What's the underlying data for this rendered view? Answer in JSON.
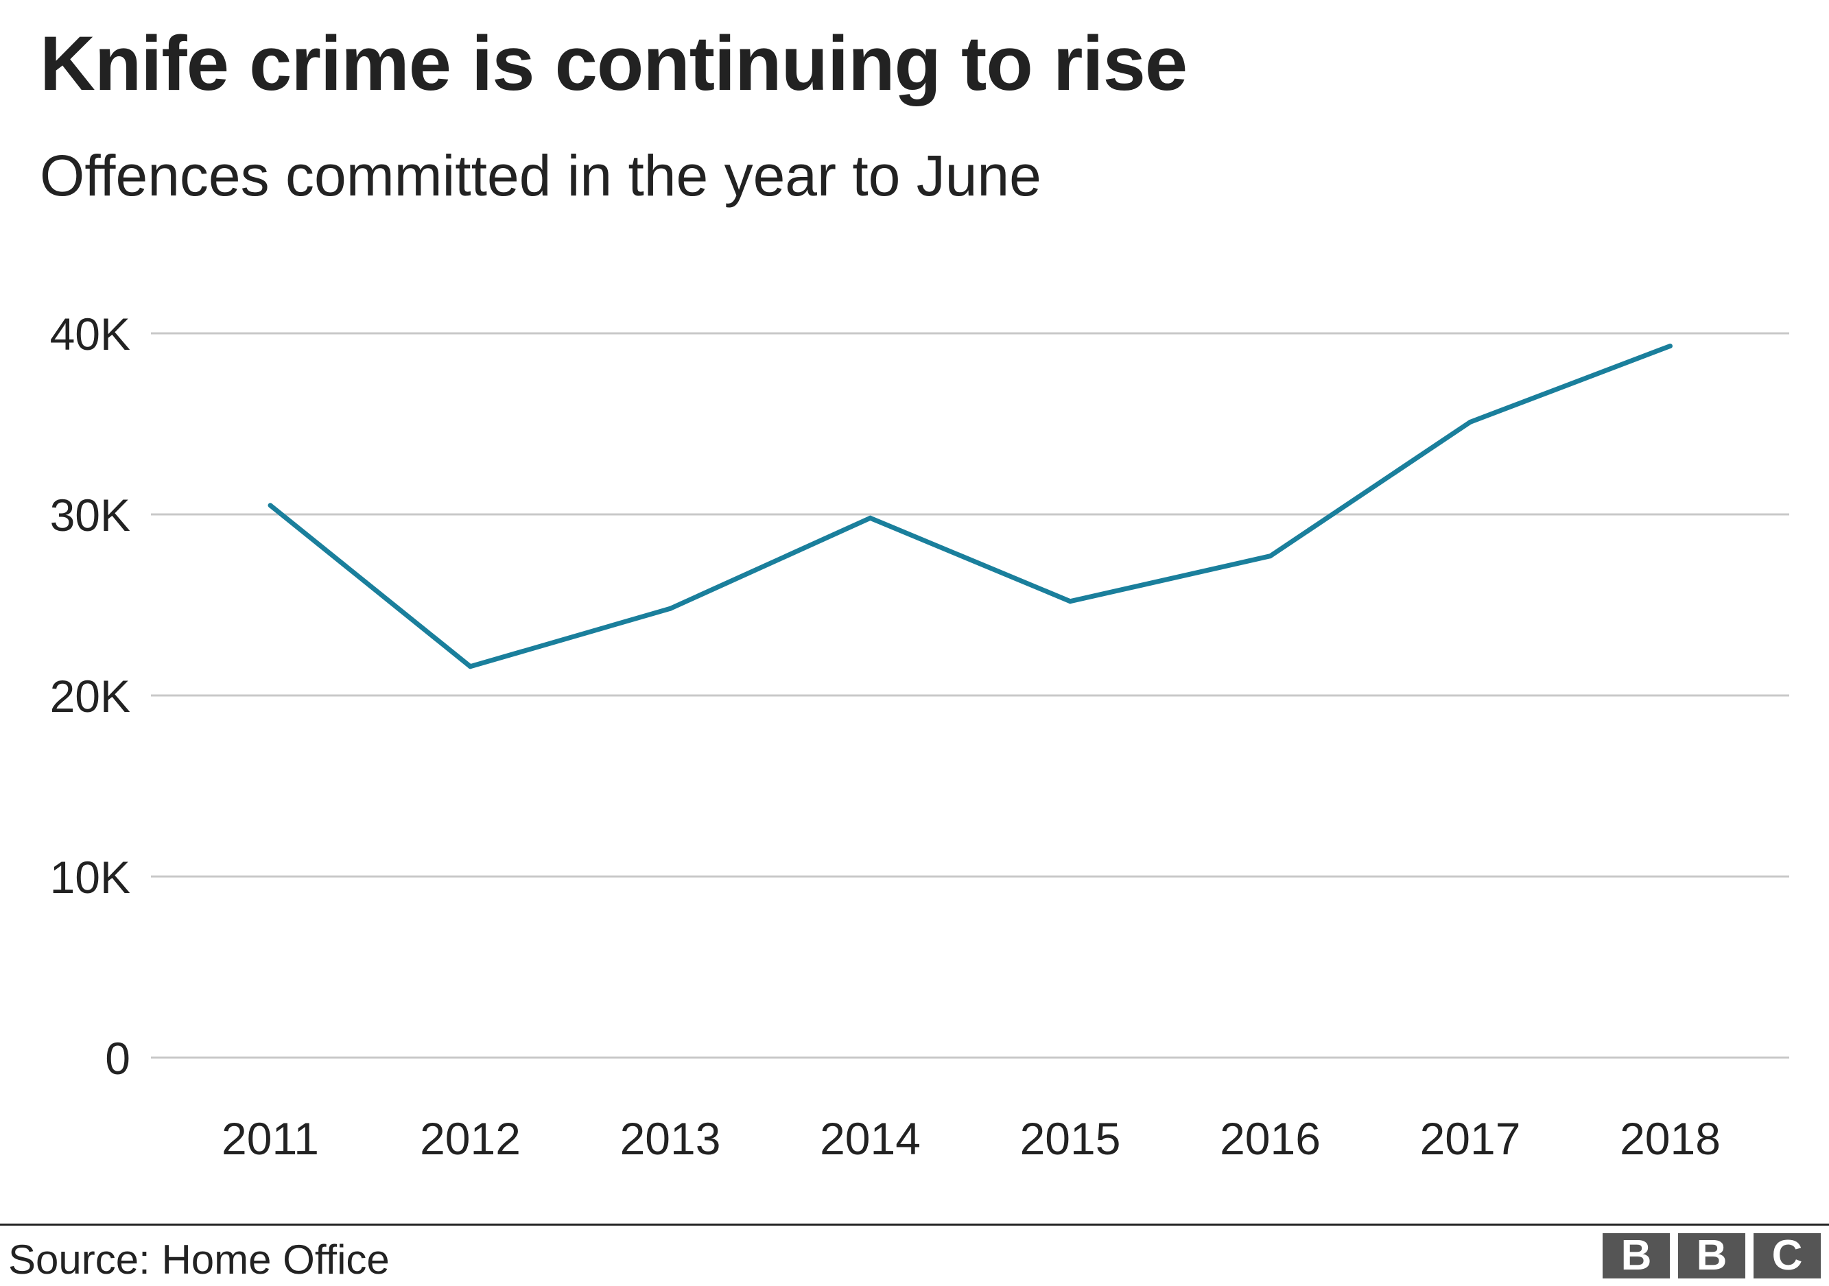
{
  "title": "Knife crime is continuing to rise",
  "subtitle": "Offences committed in the year to June",
  "source": "Source: Home Office",
  "logo": [
    "B",
    "B",
    "C"
  ],
  "colors": {
    "line": "#1a7f9c",
    "grid": "#c8c8c8",
    "text": "#222222",
    "logo_bg": "#555555"
  },
  "chart_data": {
    "type": "line",
    "categories": [
      "2011",
      "2012",
      "2013",
      "2014",
      "2015",
      "2016",
      "2017",
      "2018"
    ],
    "series": [
      {
        "values": [
          30500,
          21600,
          24800,
          29800,
          25200,
          27700,
          35100,
          39300
        ]
      }
    ],
    "yticks": [
      0,
      10000,
      20000,
      30000,
      40000
    ],
    "ytick_labels": [
      "0",
      "10K",
      "20K",
      "30K",
      "40K"
    ],
    "ylim": [
      0,
      40000
    ],
    "grid": true,
    "legend": "none"
  }
}
